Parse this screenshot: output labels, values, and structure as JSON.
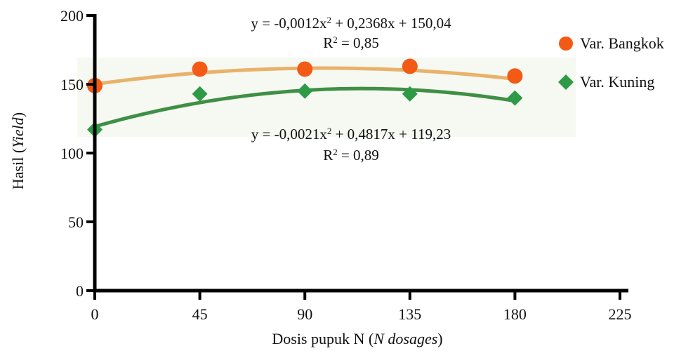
{
  "chart_data": {
    "type": "scatter",
    "xlabel": {
      "main": "Dosis pupuk N (",
      "italic": "N dosages",
      "end": ")"
    },
    "ylabel": {
      "main": "Hasil (",
      "italic": "Yield",
      "end": ")"
    },
    "xlim": [
      0,
      225
    ],
    "ylim": [
      0,
      200
    ],
    "xticks": [
      0,
      45,
      90,
      135,
      180,
      225
    ],
    "yticks": [
      0,
      50,
      100,
      150,
      200
    ],
    "x": [
      0,
      45,
      90,
      135,
      180
    ],
    "grid": false,
    "legend_position": "right",
    "series": [
      {
        "name": "Var. Bangkok",
        "values": [
          149,
          161,
          161,
          163,
          156
        ],
        "marker": "circle",
        "color": "#f25a16",
        "trend_color": "#e8b26a",
        "equation": {
          "prefix": "y = -0,0012x",
          "mid": " + 0,2368x + 150,04",
          "r2_prefix": "R",
          "r2_value": " = 0,85"
        },
        "fit": {
          "a": -0.0012,
          "b": 0.2368,
          "c": 150.04
        }
      },
      {
        "name": "Var. Kuning",
        "values": [
          117,
          143,
          145,
          143,
          140
        ],
        "marker": "diamond",
        "color": "#2e9a45",
        "trend_color": "#3f8f45",
        "equation": {
          "prefix": "y = -0,0021x",
          "mid": " + 0,4817x + 119,23",
          "r2_prefix": "R",
          "r2_value": " = 0,89"
        },
        "fit": {
          "a": -0.0021,
          "b": 0.4817,
          "c": 119.23
        }
      }
    ]
  }
}
